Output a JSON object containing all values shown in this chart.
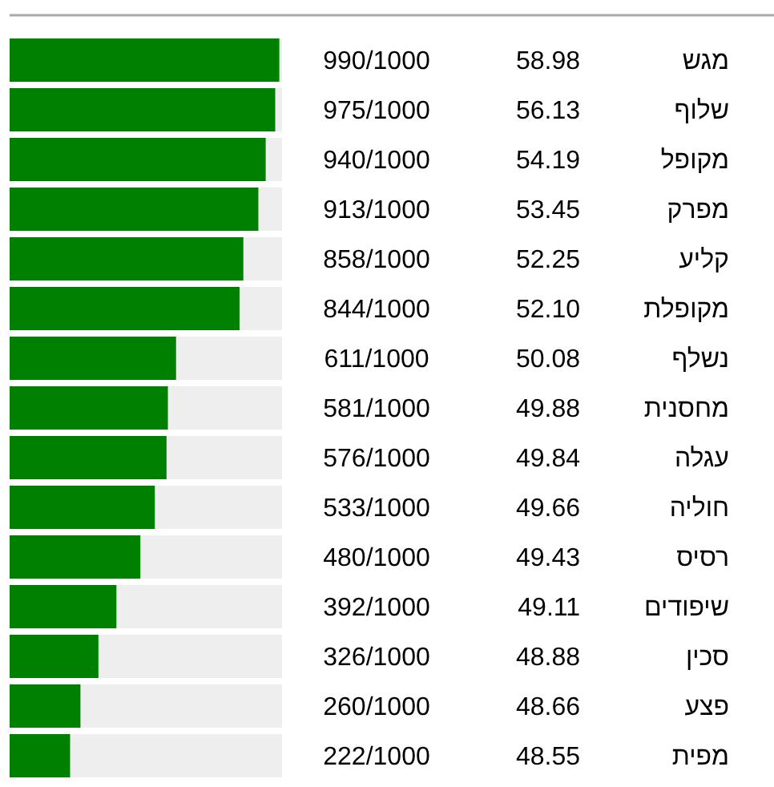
{
  "chart_data": {
    "type": "bar",
    "orientation": "horizontal",
    "categories": [
      "מגש",
      "שלוף",
      "מקופל",
      "מפרק",
      "קליע",
      "מקופלת",
      "נשלף",
      "מחסנית",
      "עגלה",
      "חוליה",
      "רסיס",
      "שיפודים",
      "סכין",
      "פצע",
      "מפית"
    ],
    "values": [
      990,
      975,
      940,
      913,
      858,
      844,
      611,
      581,
      576,
      533,
      480,
      392,
      326,
      260,
      222
    ],
    "value_labels": [
      "990/1000",
      "975/1000",
      "940/1000",
      "913/1000",
      "858/1000",
      "844/1000",
      "611/1000",
      "581/1000",
      "576/1000",
      "533/1000",
      "480/1000",
      "392/1000",
      "326/1000",
      "260/1000",
      "222/1000"
    ],
    "color": "#008000",
    "xlim": [
      0,
      1000
    ],
    "annotations": [
      "58.98",
      "56.13",
      "54.19",
      "53.45",
      "52.25",
      "52.10",
      "50.08",
      "49.88",
      "49.84",
      "49.66",
      "49.43",
      "49.11",
      "48.88",
      "48.66",
      "48.55"
    ]
  }
}
